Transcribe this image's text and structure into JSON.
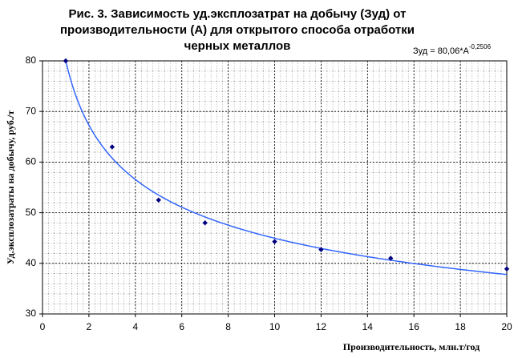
{
  "chart_data": {
    "type": "scatter",
    "title_lines": [
      "Рис. 3. Зависимость уд.эксплозатрат на добычу (Зуд) от",
      "производительности (А) для открытого способа отработки",
      "черных металлов"
    ],
    "annotation": {
      "text": "Зуд = 80,06*A",
      "superscript": "-0,2506"
    },
    "x_label": "Производительность, млн.т/год",
    "y_label": "Уд.эксплозатраты на добычу, руб./т",
    "x": [
      1,
      3,
      5,
      7,
      10,
      12,
      15,
      20
    ],
    "values": [
      80,
      63,
      52.5,
      48,
      44.3,
      42.7,
      41,
      38.9
    ],
    "color": "#000080",
    "trendline": {
      "type": "power",
      "a": 80.06,
      "b": -0.2506,
      "color": "#3366ff"
    },
    "xlim": [
      0,
      20
    ],
    "xticks": [
      0,
      2,
      4,
      6,
      8,
      10,
      12,
      14,
      16,
      18,
      20
    ],
    "ylim": [
      30,
      80
    ],
    "yticks": [
      30,
      40,
      50,
      60,
      70,
      80
    ],
    "grid": true,
    "minor_grid": true
  }
}
